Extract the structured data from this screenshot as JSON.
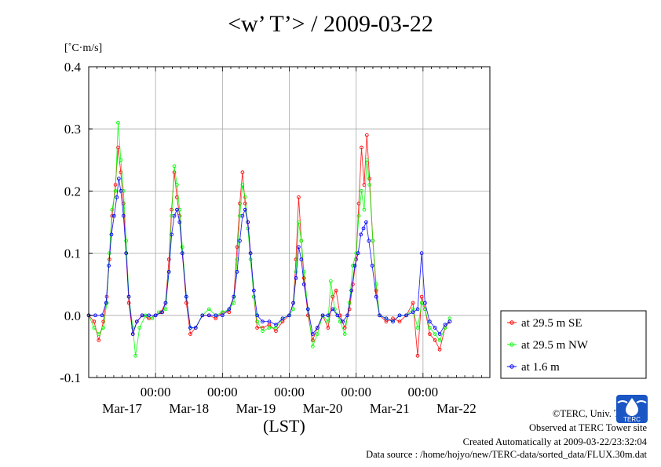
{
  "title": "<w’ T’> / 2009-03-22",
  "unit_label": "[˚C·m/s]",
  "credits": [
    "©TERC, Univ. Tsukuba",
    "Observed at TERC Tower site",
    "Created Automatically at 2009-03-22/23:32:04",
    "Data source : /home/hojyo/new/TERC-data/sorted_data/FLUX.30m.dat"
  ],
  "logo_text": "TERC",
  "chart_data": {
    "type": "line",
    "title": "<w’ T’> / 2009-03-22",
    "xlabel": "(LST)",
    "ylabel": "[˚C·m/s]",
    "xlim": [
      0.0,
      6.0
    ],
    "ylim": [
      -0.1,
      0.4
    ],
    "yticks": [
      -0.1,
      0.0,
      0.1,
      0.2,
      0.3,
      0.4
    ],
    "ytick_labels": [
      "-0.1",
      "0.0",
      "0.1",
      "0.2",
      "0.3",
      "0.4"
    ],
    "xticks": [
      1,
      2,
      3,
      4,
      5
    ],
    "xtick_labels": [
      "00:00",
      "00:00",
      "00:00",
      "00:00",
      "00:00"
    ],
    "date_labels": [
      {
        "x": 0.5,
        "label": "Mar-17"
      },
      {
        "x": 1.5,
        "label": "Mar-18"
      },
      {
        "x": 2.5,
        "label": "Mar-19"
      },
      {
        "x": 3.5,
        "label": "Mar-20"
      },
      {
        "x": 4.5,
        "label": "Mar-21"
      },
      {
        "x": 5.5,
        "label": "Mar-22"
      }
    ],
    "grid": true,
    "legend_position": "right",
    "series": [
      {
        "name": "at 29.5 m SE",
        "color": "#ff0000",
        "points": [
          [
            0.0,
            0.0
          ],
          [
            0.08,
            -0.01
          ],
          [
            0.15,
            -0.04
          ],
          [
            0.22,
            -0.01
          ],
          [
            0.27,
            0.03
          ],
          [
            0.31,
            0.09
          ],
          [
            0.35,
            0.16
          ],
          [
            0.4,
            0.21
          ],
          [
            0.44,
            0.27
          ],
          [
            0.48,
            0.23
          ],
          [
            0.52,
            0.18
          ],
          [
            0.56,
            0.1
          ],
          [
            0.6,
            0.02
          ],
          [
            0.66,
            -0.03
          ],
          [
            0.72,
            -0.01
          ],
          [
            0.8,
            0.0
          ],
          [
            0.9,
            -0.005
          ],
          [
            1.0,
            0.0
          ],
          [
            1.08,
            0.005
          ],
          [
            1.15,
            0.02
          ],
          [
            1.2,
            0.09
          ],
          [
            1.24,
            0.17
          ],
          [
            1.28,
            0.23
          ],
          [
            1.32,
            0.19
          ],
          [
            1.36,
            0.16
          ],
          [
            1.4,
            0.1
          ],
          [
            1.46,
            0.02
          ],
          [
            1.52,
            -0.03
          ],
          [
            1.6,
            -0.02
          ],
          [
            1.7,
            0.0
          ],
          [
            1.8,
            0.0
          ],
          [
            1.9,
            -0.005
          ],
          [
            2.0,
            0.005
          ],
          [
            2.1,
            0.005
          ],
          [
            2.17,
            0.03
          ],
          [
            2.22,
            0.11
          ],
          [
            2.26,
            0.18
          ],
          [
            2.3,
            0.23
          ],
          [
            2.34,
            0.18
          ],
          [
            2.38,
            0.15
          ],
          [
            2.42,
            0.1
          ],
          [
            2.47,
            0.03
          ],
          [
            2.52,
            -0.02
          ],
          [
            2.6,
            -0.02
          ],
          [
            2.7,
            -0.015
          ],
          [
            2.8,
            -0.025
          ],
          [
            2.9,
            -0.01
          ],
          [
            3.0,
            0.0
          ],
          [
            3.06,
            0.02
          ],
          [
            3.1,
            0.09
          ],
          [
            3.14,
            0.19
          ],
          [
            3.18,
            0.12
          ],
          [
            3.22,
            0.06
          ],
          [
            3.28,
            0.0
          ],
          [
            3.35,
            -0.04
          ],
          [
            3.42,
            -0.02
          ],
          [
            3.5,
            0.0
          ],
          [
            3.58,
            -0.02
          ],
          [
            3.65,
            0.03
          ],
          [
            3.7,
            0.04
          ],
          [
            3.76,
            0.0
          ],
          [
            3.83,
            -0.02
          ],
          [
            3.9,
            0.01
          ],
          [
            3.95,
            0.05
          ],
          [
            4.0,
            0.09
          ],
          [
            4.04,
            0.18
          ],
          [
            4.08,
            0.27
          ],
          [
            4.12,
            0.21
          ],
          [
            4.16,
            0.29
          ],
          [
            4.2,
            0.22
          ],
          [
            4.25,
            0.12
          ],
          [
            4.3,
            0.04
          ],
          [
            4.35,
            0.0
          ],
          [
            4.45,
            -0.01
          ],
          [
            4.55,
            -0.005
          ],
          [
            4.65,
            -0.01
          ],
          [
            4.75,
            0.0
          ],
          [
            4.85,
            0.02
          ],
          [
            4.92,
            -0.065
          ],
          [
            4.98,
            0.03
          ],
          [
            5.03,
            0.01
          ],
          [
            5.1,
            -0.03
          ],
          [
            5.18,
            -0.04
          ],
          [
            5.25,
            -0.055
          ],
          [
            5.33,
            -0.02
          ],
          [
            5.4,
            -0.01
          ]
        ]
      },
      {
        "name": "at 29.5 m NW",
        "color": "#00ff00",
        "points": [
          [
            0.0,
            0.0
          ],
          [
            0.08,
            -0.02
          ],
          [
            0.15,
            -0.03
          ],
          [
            0.22,
            -0.02
          ],
          [
            0.27,
            0.02
          ],
          [
            0.31,
            0.1
          ],
          [
            0.35,
            0.17
          ],
          [
            0.4,
            0.2
          ],
          [
            0.44,
            0.31
          ],
          [
            0.48,
            0.25
          ],
          [
            0.52,
            0.2
          ],
          [
            0.56,
            0.12
          ],
          [
            0.6,
            0.03
          ],
          [
            0.66,
            -0.02
          ],
          [
            0.7,
            -0.065
          ],
          [
            0.76,
            -0.02
          ],
          [
            0.85,
            0.0
          ],
          [
            0.95,
            -0.005
          ],
          [
            1.05,
            0.005
          ],
          [
            1.15,
            0.01
          ],
          [
            1.2,
            0.07
          ],
          [
            1.24,
            0.16
          ],
          [
            1.28,
            0.24
          ],
          [
            1.32,
            0.21
          ],
          [
            1.36,
            0.17
          ],
          [
            1.4,
            0.11
          ],
          [
            1.46,
            0.03
          ],
          [
            1.52,
            -0.02
          ],
          [
            1.6,
            -0.02
          ],
          [
            1.7,
            0.0
          ],
          [
            1.8,
            0.01
          ],
          [
            1.9,
            0.0
          ],
          [
            2.0,
            0.005
          ],
          [
            2.1,
            0.01
          ],
          [
            2.17,
            0.02
          ],
          [
            2.22,
            0.09
          ],
          [
            2.26,
            0.16
          ],
          [
            2.3,
            0.21
          ],
          [
            2.34,
            0.19
          ],
          [
            2.38,
            0.14
          ],
          [
            2.42,
            0.09
          ],
          [
            2.47,
            0.03
          ],
          [
            2.52,
            -0.01
          ],
          [
            2.6,
            -0.025
          ],
          [
            2.7,
            -0.02
          ],
          [
            2.8,
            -0.02
          ],
          [
            2.9,
            -0.005
          ],
          [
            3.0,
            0.0
          ],
          [
            3.06,
            0.01
          ],
          [
            3.1,
            0.07
          ],
          [
            3.14,
            0.15
          ],
          [
            3.18,
            0.12
          ],
          [
            3.22,
            0.07
          ],
          [
            3.28,
            0.01
          ],
          [
            3.35,
            -0.05
          ],
          [
            3.42,
            -0.03
          ],
          [
            3.5,
            0.0
          ],
          [
            3.58,
            -0.01
          ],
          [
            3.62,
            0.055
          ],
          [
            3.68,
            0.01
          ],
          [
            3.76,
            -0.01
          ],
          [
            3.83,
            -0.03
          ],
          [
            3.9,
            0.02
          ],
          [
            3.95,
            0.08
          ],
          [
            4.0,
            0.1
          ],
          [
            4.04,
            0.16
          ],
          [
            4.08,
            0.2
          ],
          [
            4.12,
            0.17
          ],
          [
            4.16,
            0.25
          ],
          [
            4.2,
            0.21
          ],
          [
            4.25,
            0.12
          ],
          [
            4.3,
            0.05
          ],
          [
            4.35,
            0.0
          ],
          [
            4.45,
            -0.005
          ],
          [
            4.55,
            -0.01
          ],
          [
            4.65,
            0.0
          ],
          [
            4.75,
            0.0
          ],
          [
            4.85,
            0.01
          ],
          [
            4.92,
            -0.02
          ],
          [
            4.98,
            0.02
          ],
          [
            5.03,
            0.01
          ],
          [
            5.1,
            -0.02
          ],
          [
            5.18,
            -0.03
          ],
          [
            5.25,
            -0.04
          ],
          [
            5.33,
            -0.02
          ],
          [
            5.4,
            -0.005
          ]
        ]
      },
      {
        "name": "at 1.6 m",
        "color": "#0000ff",
        "points": [
          [
            0.0,
            0.0
          ],
          [
            0.1,
            0.0
          ],
          [
            0.2,
            0.0
          ],
          [
            0.26,
            0.02
          ],
          [
            0.3,
            0.08
          ],
          [
            0.34,
            0.13
          ],
          [
            0.38,
            0.16
          ],
          [
            0.42,
            0.19
          ],
          [
            0.45,
            0.22
          ],
          [
            0.48,
            0.2
          ],
          [
            0.52,
            0.16
          ],
          [
            0.56,
            0.1
          ],
          [
            0.6,
            0.03
          ],
          [
            0.66,
            -0.03
          ],
          [
            0.72,
            -0.01
          ],
          [
            0.8,
            0.0
          ],
          [
            0.9,
            0.0
          ],
          [
            1.0,
            0.0
          ],
          [
            1.1,
            0.005
          ],
          [
            1.15,
            0.02
          ],
          [
            1.2,
            0.07
          ],
          [
            1.24,
            0.13
          ],
          [
            1.28,
            0.16
          ],
          [
            1.32,
            0.17
          ],
          [
            1.36,
            0.15
          ],
          [
            1.4,
            0.1
          ],
          [
            1.46,
            0.03
          ],
          [
            1.52,
            -0.02
          ],
          [
            1.6,
            -0.02
          ],
          [
            1.7,
            0.0
          ],
          [
            1.8,
            0.0
          ],
          [
            1.9,
            0.0
          ],
          [
            2.0,
            0.0
          ],
          [
            2.1,
            0.01
          ],
          [
            2.17,
            0.03
          ],
          [
            2.22,
            0.07
          ],
          [
            2.26,
            0.12
          ],
          [
            2.3,
            0.16
          ],
          [
            2.34,
            0.17
          ],
          [
            2.38,
            0.15
          ],
          [
            2.42,
            0.1
          ],
          [
            2.47,
            0.04
          ],
          [
            2.52,
            0.0
          ],
          [
            2.6,
            -0.01
          ],
          [
            2.7,
            -0.01
          ],
          [
            2.8,
            -0.015
          ],
          [
            2.9,
            -0.005
          ],
          [
            3.0,
            0.0
          ],
          [
            3.06,
            0.02
          ],
          [
            3.1,
            0.06
          ],
          [
            3.14,
            0.11
          ],
          [
            3.18,
            0.09
          ],
          [
            3.22,
            0.05
          ],
          [
            3.28,
            0.01
          ],
          [
            3.35,
            -0.03
          ],
          [
            3.42,
            -0.02
          ],
          [
            3.5,
            0.0
          ],
          [
            3.58,
            0.0
          ],
          [
            3.65,
            0.01
          ],
          [
            3.72,
            0.0
          ],
          [
            3.8,
            -0.01
          ],
          [
            3.87,
            0.0
          ],
          [
            3.93,
            0.04
          ],
          [
            3.98,
            0.08
          ],
          [
            4.03,
            0.1
          ],
          [
            4.07,
            0.13
          ],
          [
            4.11,
            0.14
          ],
          [
            4.15,
            0.15
          ],
          [
            4.19,
            0.12
          ],
          [
            4.24,
            0.08
          ],
          [
            4.3,
            0.03
          ],
          [
            4.35,
            0.0
          ],
          [
            4.45,
            -0.005
          ],
          [
            4.55,
            -0.01
          ],
          [
            4.65,
            0.0
          ],
          [
            4.75,
            0.0
          ],
          [
            4.85,
            0.005
          ],
          [
            4.92,
            0.01
          ],
          [
            4.98,
            0.1
          ],
          [
            5.03,
            0.02
          ],
          [
            5.1,
            -0.01
          ],
          [
            5.18,
            -0.02
          ],
          [
            5.25,
            -0.03
          ],
          [
            5.33,
            -0.015
          ],
          [
            5.4,
            -0.01
          ]
        ]
      }
    ]
  }
}
